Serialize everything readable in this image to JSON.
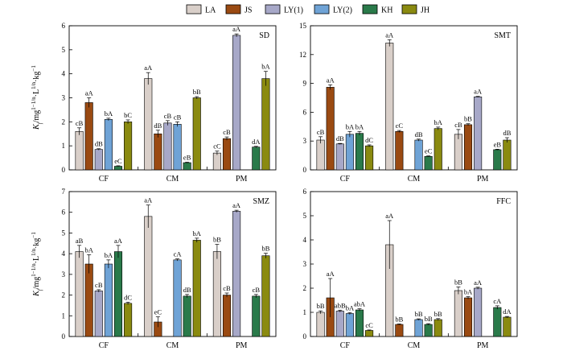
{
  "legend": [
    {
      "name": "LA",
      "color": "#d9cfc9"
    },
    {
      "name": "JS",
      "color": "#9a4a12"
    },
    {
      "name": "LY(1)",
      "color": "#a7a8c8"
    },
    {
      "name": "LY(2)",
      "color": "#6fa3d6"
    },
    {
      "name": "KH",
      "color": "#2a7a4a"
    },
    {
      "name": "JH",
      "color": "#8a8a10"
    }
  ],
  "ylabel": "K_f/mg^(1-1/n)·L^(1/n)·kg^-1",
  "ylabel_parts": {
    "k": "K",
    "f": "f",
    "unit": "/mg",
    "exp1": "1−1/n",
    "mid": "·L",
    "exp2": "1/n",
    "tail": "·kg",
    "exp3": "−1"
  },
  "chart_data": [
    {
      "type": "bar",
      "title": "SD",
      "categories": [
        "CF",
        "CM",
        "PM"
      ],
      "ylim": [
        0,
        6
      ],
      "yticks": [
        0,
        1,
        2,
        3,
        4,
        5,
        6
      ],
      "series": [
        {
          "name": "LA",
          "values": [
            1.6,
            3.8,
            0.7
          ],
          "errors": [
            0.15,
            0.25,
            0.08
          ],
          "labels": [
            "cB",
            "aA",
            "cC"
          ]
        },
        {
          "name": "JS",
          "values": [
            2.8,
            1.5,
            1.3
          ],
          "errors": [
            0.2,
            0.15,
            0.07
          ],
          "labels": [
            "aA",
            "dB",
            "cB"
          ]
        },
        {
          "name": "LY(1)",
          "values": [
            0.85,
            1.95,
            5.6
          ],
          "errors": [
            0.03,
            0.1,
            0.06
          ],
          "labels": [
            "dB",
            "cB",
            "aA"
          ]
        },
        {
          "name": "LY(2)",
          "values": [
            2.1,
            1.9,
            0.0
          ],
          "errors": [
            0.05,
            0.1,
            0.0
          ],
          "labels": [
            "bA",
            "cB",
            ""
          ]
        },
        {
          "name": "KH",
          "values": [
            0.15,
            0.3,
            0.95
          ],
          "errors": [
            0.02,
            0.02,
            0.03
          ],
          "labels": [
            "eC",
            "eB",
            "dA"
          ]
        },
        {
          "name": "JH",
          "values": [
            2.0,
            3.0,
            3.8
          ],
          "errors": [
            0.08,
            0.05,
            0.3
          ],
          "labels": [
            "bC",
            "bB",
            "bA"
          ]
        }
      ]
    },
    {
      "type": "bar",
      "title": "SMT",
      "categories": [
        "CF",
        "CM",
        "PM"
      ],
      "ylim": [
        0,
        15
      ],
      "yticks": [
        0,
        3,
        6,
        9,
        12,
        15
      ],
      "series": [
        {
          "name": "LA",
          "values": [
            3.1,
            13.2,
            3.7
          ],
          "errors": [
            0.35,
            0.35,
            0.5
          ],
          "labels": [
            "cB",
            "aA",
            "cB"
          ]
        },
        {
          "name": "JS",
          "values": [
            8.6,
            4.0,
            4.7
          ],
          "errors": [
            0.25,
            0.1,
            0.1
          ],
          "labels": [
            "aA",
            "cC",
            "bB"
          ]
        },
        {
          "name": "LY(1)",
          "values": [
            2.7,
            0.0,
            7.6
          ],
          "errors": [
            0.05,
            0.0,
            0.05
          ],
          "labels": [
            "dB",
            "",
            "aA"
          ]
        },
        {
          "name": "LY(2)",
          "values": [
            3.7,
            3.1,
            0.0
          ],
          "errors": [
            0.3,
            0.1,
            0.0
          ],
          "labels": [
            "bA",
            "dB",
            ""
          ]
        },
        {
          "name": "KH",
          "values": [
            3.8,
            1.4,
            2.1
          ],
          "errors": [
            0.2,
            0.05,
            0.05
          ],
          "labels": [
            "bA",
            "eC",
            "eB"
          ]
        },
        {
          "name": "JH",
          "values": [
            2.5,
            4.3,
            3.1
          ],
          "errors": [
            0.1,
            0.15,
            0.25
          ],
          "labels": [
            "dC",
            "bA",
            "dB"
          ]
        }
      ]
    },
    {
      "type": "bar",
      "title": "SMZ",
      "categories": [
        "CF",
        "CM",
        "PM"
      ],
      "ylim": [
        0,
        7
      ],
      "yticks": [
        0,
        1,
        2,
        3,
        4,
        5,
        6,
        7
      ],
      "series": [
        {
          "name": "LA",
          "values": [
            4.1,
            5.8,
            4.1
          ],
          "errors": [
            0.3,
            0.55,
            0.35
          ],
          "labels": [
            "aB",
            "aA",
            "bB"
          ]
        },
        {
          "name": "JS",
          "values": [
            3.5,
            0.7,
            2.0
          ],
          "errors": [
            0.45,
            0.25,
            0.1
          ],
          "labels": [
            "bA",
            "eC",
            "cB"
          ]
        },
        {
          "name": "LY(1)",
          "values": [
            2.2,
            0.0,
            6.05
          ],
          "errors": [
            0.06,
            0.0,
            0.05
          ],
          "labels": [
            "cB",
            "",
            "aA"
          ]
        },
        {
          "name": "LY(2)",
          "values": [
            3.5,
            3.7,
            0.0
          ],
          "errors": [
            0.2,
            0.05,
            0.0
          ],
          "labels": [
            "bA",
            "cA",
            ""
          ]
        },
        {
          "name": "KH",
          "values": [
            4.1,
            1.95,
            1.95
          ],
          "errors": [
            0.3,
            0.08,
            0.08
          ],
          "labels": [
            "aA",
            "dB",
            "cB"
          ]
        },
        {
          "name": "JH",
          "values": [
            1.6,
            4.65,
            3.9
          ],
          "errors": [
            0.06,
            0.1,
            0.12
          ],
          "labels": [
            "dC",
            "bA",
            "bB"
          ]
        }
      ]
    },
    {
      "type": "bar",
      "title": "FFC",
      "categories": [
        "CF",
        "CM",
        "PM"
      ],
      "ylim": [
        0,
        6
      ],
      "yticks": [
        0,
        1,
        2,
        3,
        4,
        5,
        6
      ],
      "series": [
        {
          "name": "LA",
          "values": [
            1.0,
            3.8,
            1.9
          ],
          "errors": [
            0.06,
            1.0,
            0.15
          ],
          "labels": [
            "bB",
            "aA",
            "bB"
          ]
        },
        {
          "name": "JS",
          "values": [
            1.6,
            0.5,
            1.6
          ],
          "errors": [
            0.8,
            0.02,
            0.05
          ],
          "labels": [
            "aA",
            "bB",
            "bA"
          ]
        },
        {
          "name": "LY(1)",
          "values": [
            1.05,
            0.0,
            2.0
          ],
          "errors": [
            0.04,
            0.0,
            0.04
          ],
          "labels": [
            "abB",
            "",
            "aA"
          ]
        },
        {
          "name": "LY(2)",
          "values": [
            0.95,
            0.7,
            0.0
          ],
          "errors": [
            0.04,
            0.03,
            0.0
          ],
          "labels": [
            "bA",
            "bB",
            ""
          ]
        },
        {
          "name": "KH",
          "values": [
            1.1,
            0.5,
            1.2
          ],
          "errors": [
            0.05,
            0.03,
            0.07
          ],
          "labels": [
            "abA",
            "bB",
            "cA"
          ]
        },
        {
          "name": "JH",
          "values": [
            0.25,
            0.7,
            0.8
          ],
          "errors": [
            0.02,
            0.04,
            0.03
          ],
          "labels": [
            "cC",
            "bB",
            "dA"
          ]
        }
      ]
    }
  ]
}
